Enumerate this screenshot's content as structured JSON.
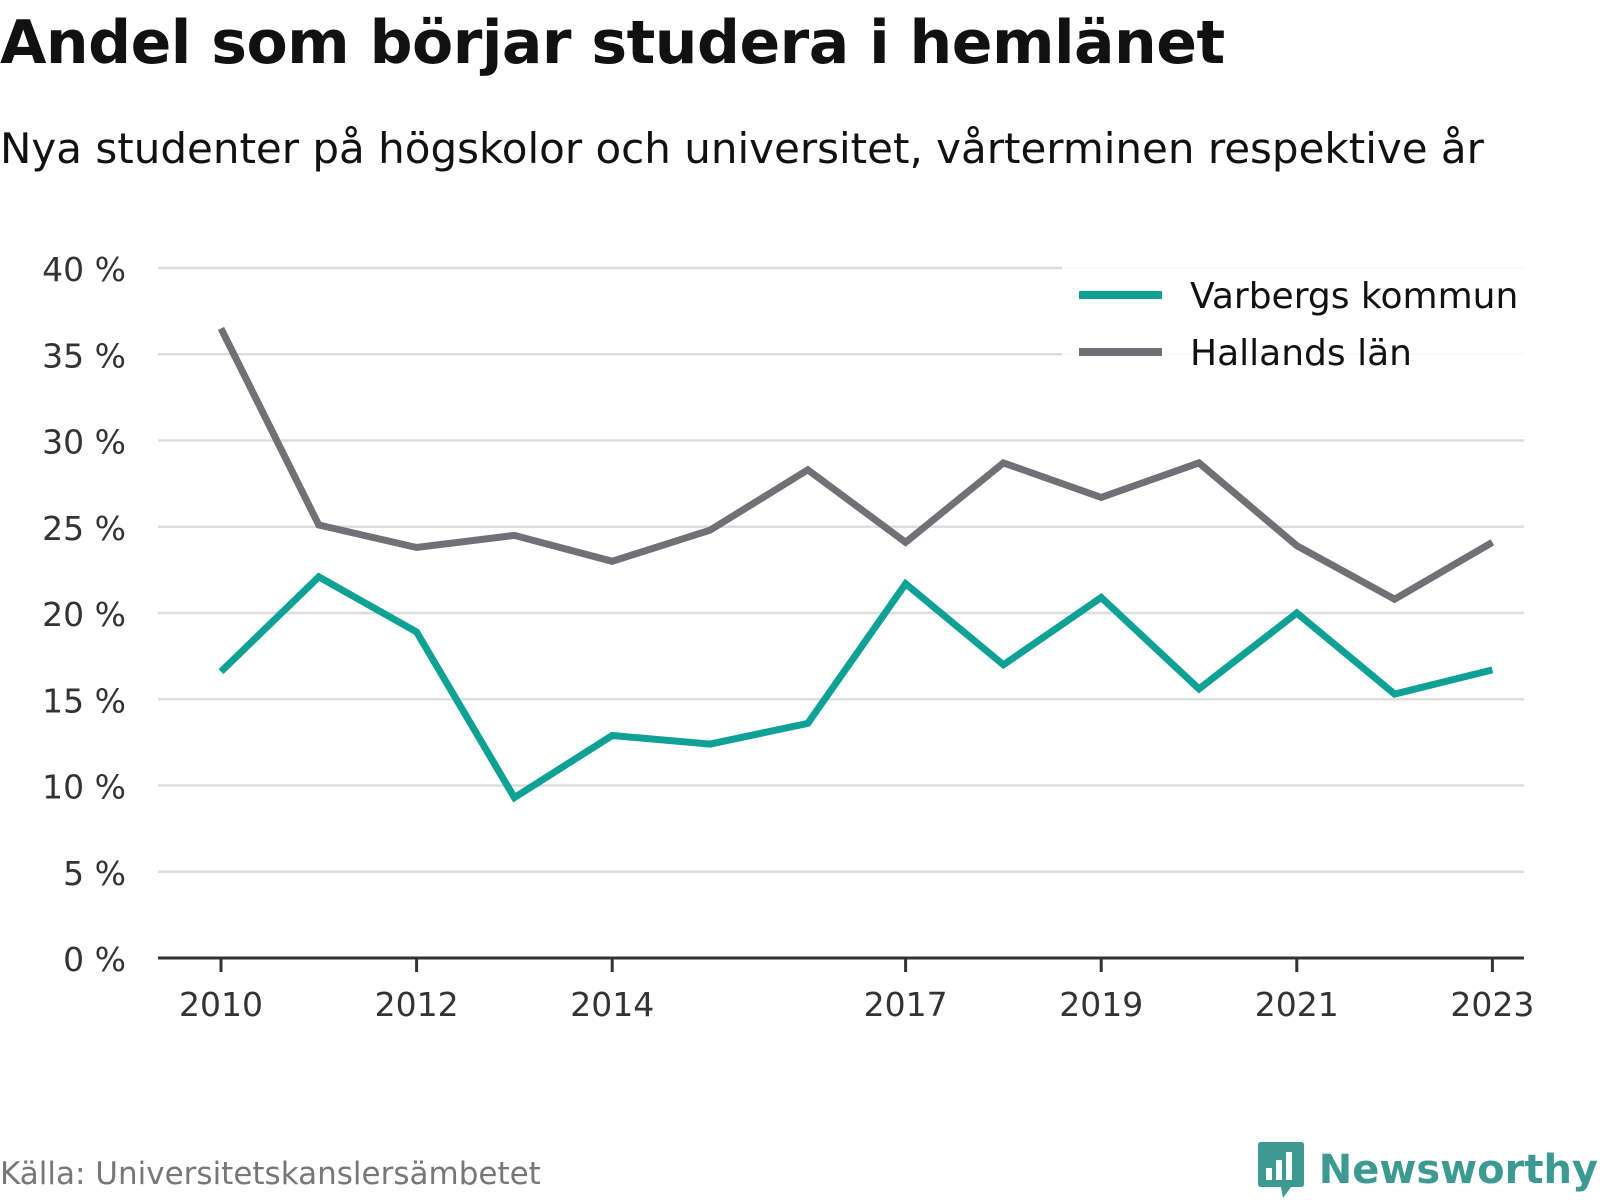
{
  "header": {
    "title": "Andel som börjar studera i hemlänet",
    "subtitle": "Nya studenter på högskolor och universitet, vårterminen respektive år"
  },
  "footer": {
    "source": "Källa: Universitetskanslersämbetet",
    "brand": "Newsworthy",
    "brand_icon": "bar-chart-speech-bubble-icon"
  },
  "colors": {
    "varberg": "#0fa196",
    "halland": "#717076",
    "grid": "#dddddd",
    "axis": "#333333",
    "brand": "#3d9a93"
  },
  "chart_data": {
    "type": "line",
    "x": [
      2010,
      2011,
      2012,
      2013,
      2014,
      2015,
      2016,
      2017,
      2018,
      2019,
      2020,
      2021,
      2022,
      2023
    ],
    "x_ticks": [
      2010,
      2012,
      2014,
      2017,
      2019,
      2021,
      2023
    ],
    "y_ticks": [
      0,
      5,
      10,
      15,
      20,
      25,
      30,
      35,
      40
    ],
    "y_tick_labels": [
      "0 %",
      "5 %",
      "10 %",
      "15 %",
      "20 %",
      "25 %",
      "30 %",
      "35 %",
      "40 %"
    ],
    "ylim": [
      0,
      40
    ],
    "y_unit": "%",
    "grid": true,
    "legend_position": "top-right",
    "series": [
      {
        "name": "Varbergs kommun",
        "color": "#0fa196",
        "values": [
          16.6,
          22.1,
          18.9,
          9.3,
          12.9,
          12.4,
          13.6,
          21.7,
          17.0,
          20.9,
          15.6,
          20.0,
          15.3,
          16.7
        ]
      },
      {
        "name": "Hallands län",
        "color": "#717076",
        "values": [
          36.5,
          25.1,
          23.8,
          24.5,
          23.0,
          24.8,
          28.3,
          24.1,
          28.7,
          26.7,
          28.7,
          23.9,
          20.8,
          24.1
        ]
      }
    ]
  }
}
